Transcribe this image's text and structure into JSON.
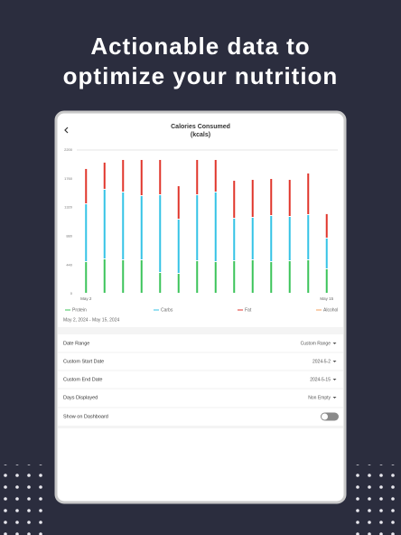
{
  "headline": [
    "Actionable data to",
    "optimize your nutrition"
  ],
  "screen": {
    "title": "Calories Consumed",
    "subtitle": "(kcals)",
    "date_range": "May 2, 2024 - May 15, 2024"
  },
  "chart_data": {
    "type": "stacked_bar",
    "categories": [
      "May 2",
      null,
      null,
      null,
      null,
      null,
      null,
      null,
      null,
      null,
      null,
      null,
      null,
      "May 15"
    ],
    "series": [
      {
        "name": "Protein",
        "color": "#3cc45a",
        "values": [
          484,
          526,
          512,
          512,
          318,
          304,
          498,
          484,
          498,
          512,
          484,
          498,
          512,
          374
        ]
      },
      {
        "name": "Carbs",
        "color": "#35c3e6",
        "values": [
          886,
          1066,
          1038,
          982,
          1190,
          830,
          1010,
          1066,
          650,
          650,
          706,
          678,
          692,
          471
        ]
      },
      {
        "name": "Fat",
        "color": "#e0362c",
        "values": [
          540,
          415,
          498,
          554,
          540,
          512,
          540,
          498,
          581,
          581,
          567,
          567,
          637,
          374
        ]
      },
      {
        "name": "Alcohol",
        "color": "#f5a25d",
        "values": [
          0,
          0,
          0,
          0,
          0,
          0,
          0,
          0,
          0,
          0,
          0,
          0,
          0,
          0
        ]
      }
    ],
    "ylim": [
      0,
      2200
    ],
    "yticks": [
      0,
      440,
      880,
      1320,
      1760,
      2200
    ],
    "grid": false
  },
  "settings": [
    {
      "label": "Date Range",
      "value": "Custom Range"
    },
    {
      "label": "Custom Start Date",
      "value": "2024-5-2"
    },
    {
      "label": "Custom End Date",
      "value": "2024-5-15"
    },
    {
      "label": "Days Displayed",
      "value": "Non Empty"
    },
    {
      "label": "Show on Dashboard"
    }
  ]
}
